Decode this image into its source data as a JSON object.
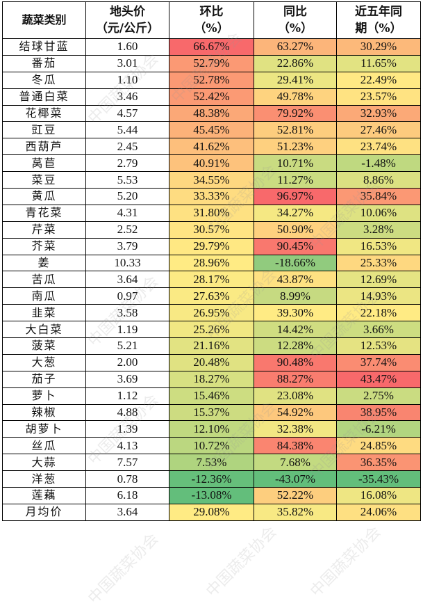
{
  "header": {
    "col0": "蔬菜类别",
    "col1_line1": "地头价",
    "col1_line2": "（元/公斤）",
    "col2_line1": "环比",
    "col2_line2": "（%）",
    "col3_line1": "同比",
    "col3_line2": "（%）",
    "col4_line1": "近五年同",
    "col4_line2": "期（%）"
  },
  "rows": [
    {
      "name": "结球甘蓝",
      "price": "1.60",
      "mom": "66.67%",
      "yoy": "63.27%",
      "five": "30.29%"
    },
    {
      "name": "番茄",
      "price": "3.01",
      "mom": "52.79%",
      "yoy": "22.86%",
      "five": "11.65%"
    },
    {
      "name": "冬瓜",
      "price": "1.10",
      "mom": "52.78%",
      "yoy": "29.41%",
      "five": "22.49%"
    },
    {
      "name": "普通白菜",
      "price": "3.46",
      "mom": "52.42%",
      "yoy": "49.78%",
      "five": "23.57%"
    },
    {
      "name": "花椰菜",
      "price": "4.57",
      "mom": "48.38%",
      "yoy": "79.92%",
      "five": "32.93%"
    },
    {
      "name": "豇豆",
      "price": "5.44",
      "mom": "45.45%",
      "yoy": "52.81%",
      "five": "27.46%"
    },
    {
      "name": "西葫芦",
      "price": "2.45",
      "mom": "41.62%",
      "yoy": "51.23%",
      "five": "23.74%"
    },
    {
      "name": "莴苣",
      "price": "2.79",
      "mom": "40.91%",
      "yoy": "10.71%",
      "five": "-1.48%"
    },
    {
      "name": "菜豆",
      "price": "5.53",
      "mom": "34.55%",
      "yoy": "11.27%",
      "five": "8.86%"
    },
    {
      "name": "黄瓜",
      "price": "5.20",
      "mom": "33.33%",
      "yoy": "96.97%",
      "five": "35.84%"
    },
    {
      "name": "青花菜",
      "price": "4.31",
      "mom": "31.80%",
      "yoy": "34.27%",
      "five": "10.06%"
    },
    {
      "name": "芹菜",
      "price": "2.52",
      "mom": "30.57%",
      "yoy": "50.90%",
      "five": "3.28%"
    },
    {
      "name": "芥菜",
      "price": "3.79",
      "mom": "29.79%",
      "yoy": "90.45%",
      "five": "16.53%"
    },
    {
      "name": "姜",
      "price": "10.33",
      "mom": "28.96%",
      "yoy": "-18.66%",
      "five": "25.33%"
    },
    {
      "name": "苦瓜",
      "price": "3.64",
      "mom": "28.17%",
      "yoy": "43.87%",
      "five": "12.69%"
    },
    {
      "name": "南瓜",
      "price": "0.97",
      "mom": "27.63%",
      "yoy": "8.99%",
      "five": "14.93%"
    },
    {
      "name": "韭菜",
      "price": "3.58",
      "mom": "26.95%",
      "yoy": "39.30%",
      "five": "22.18%"
    },
    {
      "name": "大白菜",
      "price": "1.19",
      "mom": "25.26%",
      "yoy": "14.42%",
      "five": "3.66%"
    },
    {
      "name": "菠菜",
      "price": "5.21",
      "mom": "21.16%",
      "yoy": "12.28%",
      "five": "12.53%"
    },
    {
      "name": "大葱",
      "price": "2.00",
      "mom": "20.48%",
      "yoy": "90.48%",
      "five": "37.74%"
    },
    {
      "name": "茄子",
      "price": "3.69",
      "mom": "18.27%",
      "yoy": "88.27%",
      "five": "43.47%"
    },
    {
      "name": "萝卜",
      "price": "1.12",
      "mom": "15.46%",
      "yoy": "23.08%",
      "five": "2.75%"
    },
    {
      "name": "辣椒",
      "price": "4.88",
      "mom": "15.37%",
      "yoy": "54.92%",
      "five": "38.95%"
    },
    {
      "name": "胡萝卜",
      "price": "1.39",
      "mom": "12.10%",
      "yoy": "32.38%",
      "five": "-6.21%"
    },
    {
      "name": "丝瓜",
      "price": "4.13",
      "mom": "10.72%",
      "yoy": "84.38%",
      "five": "24.85%"
    },
    {
      "name": "大蒜",
      "price": "7.57",
      "mom": "7.53%",
      "yoy": "7.68%",
      "five": "36.35%"
    },
    {
      "name": "洋葱",
      "price": "0.78",
      "mom": "-12.36%",
      "yoy": "-43.07%",
      "five": "-35.43%"
    },
    {
      "name": "莲藕",
      "price": "6.18",
      "mom": "-13.08%",
      "yoy": "52.22%",
      "five": "16.08%"
    },
    {
      "name": "月均价",
      "price": "3.64",
      "mom": "29.08%",
      "yoy": "35.82%",
      "five": "24.06%"
    }
  ],
  "colors": {
    "scale_low": "#63BE7B",
    "scale_mid": "#FFEB84",
    "scale_high": "#F8696B"
  },
  "watermark": "中国蔬菜协会"
}
